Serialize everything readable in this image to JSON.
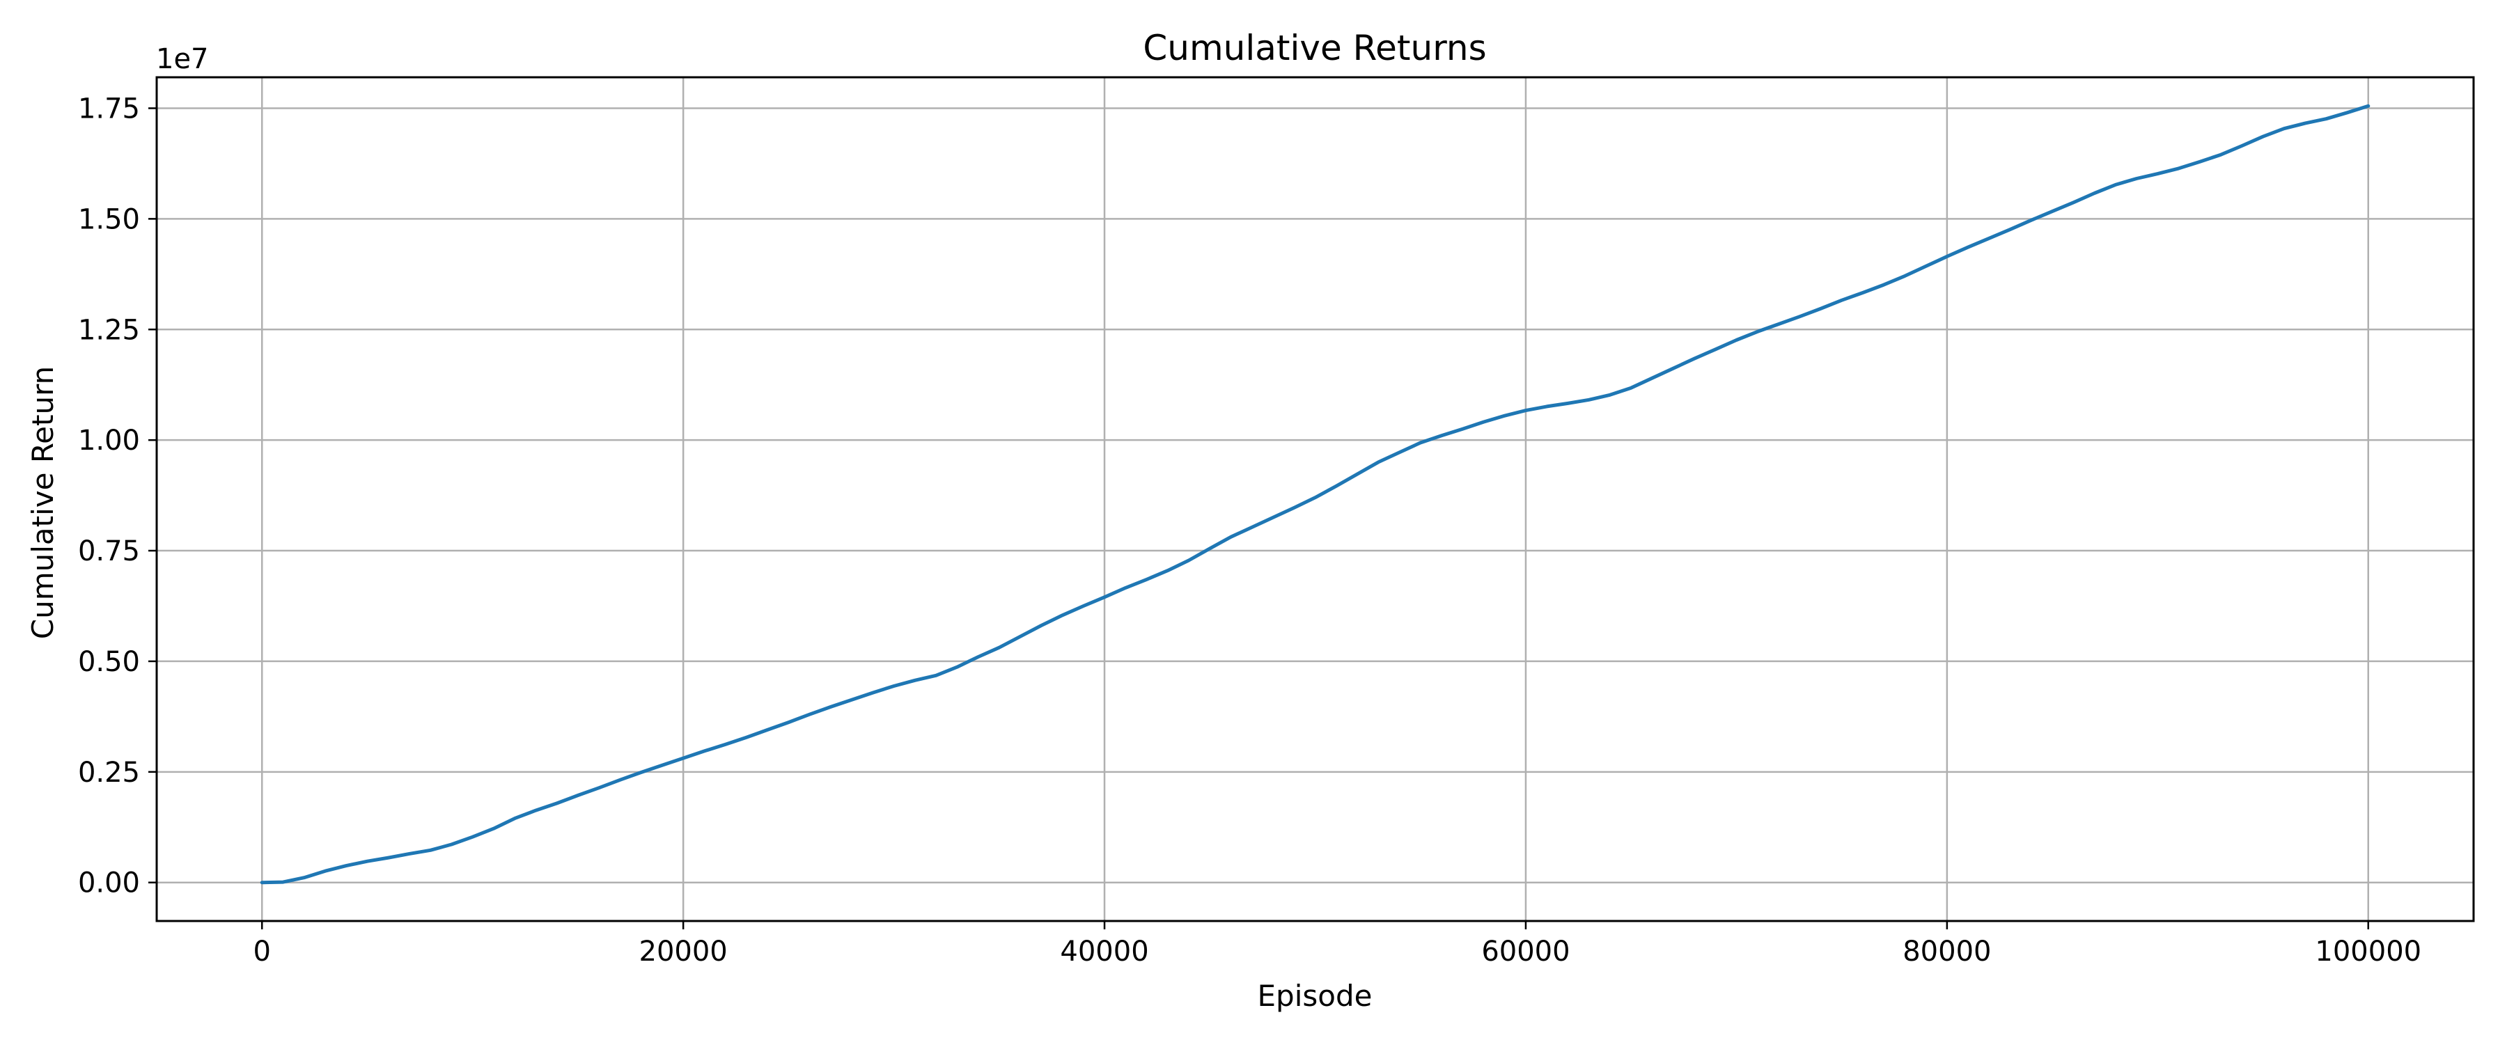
{
  "chart_data": {
    "type": "line",
    "title": "Cumulative Returns",
    "xlabel": "Episode",
    "ylabel": "Cumulative Return",
    "y_offset_label": "1e7",
    "xlim": [
      -5000,
      105000
    ],
    "ylim": [
      -0.087,
      1.82
    ],
    "x_ticks": [
      0,
      20000,
      40000,
      60000,
      80000,
      100000
    ],
    "x_tick_labels": [
      "0",
      "20000",
      "40000",
      "60000",
      "80000",
      "100000"
    ],
    "y_ticks": [
      0,
      0.25,
      0.5,
      0.75,
      1.0,
      1.25,
      1.5,
      1.75
    ],
    "y_tick_labels": [
      "0.00",
      "0.25",
      "0.50",
      "0.75",
      "1.00",
      "1.25",
      "1.50",
      "1.75"
    ],
    "grid": true,
    "line_color": "#1f77b4",
    "grid_color": "#b0b0b0",
    "series": [
      {
        "x": [
          0,
          1000,
          2000,
          3000,
          4000,
          5000,
          6000,
          7000,
          8000,
          9000,
          10000,
          11000,
          12000,
          13000,
          14000,
          15000,
          16000,
          17000,
          18000,
          19000,
          20000,
          21000,
          22000,
          23000,
          24000,
          25000,
          26000,
          27000,
          28000,
          29000,
          30000,
          31000,
          32000,
          33000,
          34000,
          35000,
          36000,
          37000,
          38000,
          39000,
          40000,
          41000,
          42000,
          43000,
          44000,
          45000,
          46000,
          47000,
          48000,
          49000,
          50000,
          51000,
          52000,
          53000,
          54000,
          55000,
          56000,
          57000,
          58000,
          59000,
          60000,
          61000,
          62000,
          63000,
          64000,
          65000,
          66000,
          67000,
          68000,
          69000,
          70000,
          71000,
          72000,
          73000,
          74000,
          75000,
          76000,
          77000,
          78000,
          79000,
          80000,
          81000,
          82000,
          83000,
          84000,
          85000,
          86000,
          87000,
          88000,
          89000,
          90000,
          91000,
          92000,
          93000,
          94000,
          95000,
          96000,
          97000,
          98000,
          99000,
          100000
        ],
        "values": [
          0.0,
          0.001,
          0.011,
          0.026,
          0.038,
          0.048,
          0.056,
          0.065,
          0.073,
          0.086,
          0.103,
          0.122,
          0.145,
          0.163,
          0.179,
          0.197,
          0.214,
          0.232,
          0.249,
          0.265,
          0.281,
          0.297,
          0.312,
          0.328,
          0.345,
          0.362,
          0.38,
          0.397,
          0.413,
          0.429,
          0.444,
          0.457,
          0.468,
          0.487,
          0.51,
          0.531,
          0.556,
          0.581,
          0.604,
          0.625,
          0.645,
          0.666,
          0.685,
          0.705,
          0.728,
          0.755,
          0.781,
          0.803,
          0.825,
          0.847,
          0.87,
          0.896,
          0.923,
          0.95,
          0.972,
          0.994,
          1.01,
          1.025,
          1.041,
          1.055,
          1.067,
          1.076,
          1.083,
          1.091,
          1.102,
          1.118,
          1.14,
          1.162,
          1.184,
          1.205,
          1.226,
          1.245,
          1.262,
          1.279,
          1.297,
          1.316,
          1.333,
          1.351,
          1.371,
          1.393,
          1.415,
          1.436,
          1.456,
          1.476,
          1.497,
          1.517,
          1.537,
          1.558,
          1.577,
          1.591,
          1.602,
          1.614,
          1.629,
          1.645,
          1.665,
          1.686,
          1.704,
          1.716,
          1.726,
          1.74,
          1.755
        ]
      }
    ]
  }
}
